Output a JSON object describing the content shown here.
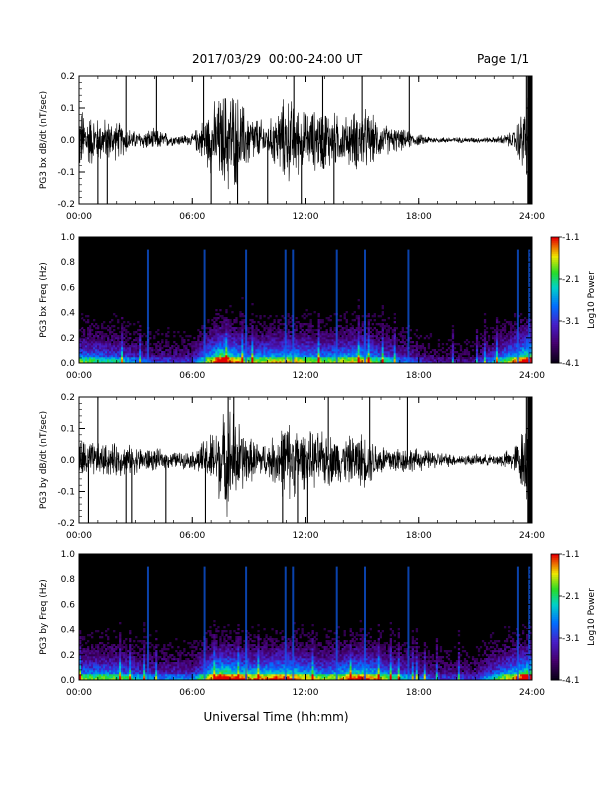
{
  "header": {
    "title": "2017/03/29  00:00-24:00 UT",
    "page": "Page 1/1"
  },
  "x_axis_title": "Universal Time (hh:mm)",
  "chart_data": [
    {
      "type": "line",
      "ylabel": "PG3 bx dB/dt (nT/sec)",
      "xlim": [
        0,
        24
      ],
      "ylim": [
        -0.2,
        0.2
      ],
      "x_ticks": [
        "00:00",
        "06:00",
        "12:00",
        "18:00",
        "24:00"
      ],
      "y_ticks": [
        "-0.2",
        "-0.1",
        "0.0",
        "0.1",
        "0.2"
      ],
      "activity_envelope": [
        {
          "hour": 0,
          "amp": 0.12
        },
        {
          "hour": 1,
          "amp": 0.08
        },
        {
          "hour": 2,
          "amp": 0.07
        },
        {
          "hour": 3,
          "amp": 0.03
        },
        {
          "hour": 4,
          "amp": 0.04
        },
        {
          "hour": 5,
          "amp": 0.02
        },
        {
          "hour": 6,
          "amp": 0.02
        },
        {
          "hour": 7,
          "amp": 0.12
        },
        {
          "hour": 8,
          "amp": 0.2
        },
        {
          "hour": 9,
          "amp": 0.1
        },
        {
          "hour": 10,
          "amp": 0.06
        },
        {
          "hour": 11,
          "amp": 0.16
        },
        {
          "hour": 12,
          "amp": 0.1
        },
        {
          "hour": 13,
          "amp": 0.12
        },
        {
          "hour": 14,
          "amp": 0.08
        },
        {
          "hour": 15,
          "amp": 0.12
        },
        {
          "hour": 16,
          "amp": 0.06
        },
        {
          "hour": 17,
          "amp": 0.04
        },
        {
          "hour": 18,
          "amp": 0.02
        },
        {
          "hour": 19,
          "amp": 0.01
        },
        {
          "hour": 20,
          "amp": 0.01
        },
        {
          "hour": 21,
          "amp": 0.01
        },
        {
          "hour": 22,
          "amp": 0.01
        },
        {
          "hour": 23,
          "amp": 0.03
        },
        {
          "hour": 24,
          "amp": 0.2
        }
      ],
      "spikes": [
        1.0,
        1.5,
        2.5,
        4.1,
        6.6,
        7.0,
        8.4,
        10.0,
        11.4,
        11.8,
        12.9,
        13.5,
        15.0,
        17.5,
        23.7,
        23.9
      ]
    },
    {
      "type": "heatmap",
      "ylabel": "PG3 bx Freq (Hz)",
      "xlim": [
        0,
        24
      ],
      "ylim": [
        0.0,
        1.0
      ],
      "x_ticks": [
        "00:00",
        "06:00",
        "12:00",
        "18:00",
        "24:00"
      ],
      "y_ticks": [
        "0.0",
        "0.2",
        "0.4",
        "0.6",
        "0.8",
        "1.0"
      ],
      "colorbar": {
        "label": "Log10 Power",
        "min": -4.1,
        "max": -1.1,
        "ticks": [
          "-1.1",
          "-2.1",
          "-3.1",
          "-4.1"
        ]
      },
      "activity_hours": [
        {
          "hour": 0,
          "level": 0.6
        },
        {
          "hour": 2,
          "level": 0.5
        },
        {
          "hour": 4,
          "level": 0.3
        },
        {
          "hour": 6,
          "level": 0.3
        },
        {
          "hour": 7.5,
          "level": 0.9
        },
        {
          "hour": 9,
          "level": 0.6
        },
        {
          "hour": 11,
          "level": 0.7
        },
        {
          "hour": 13,
          "level": 0.6
        },
        {
          "hour": 15,
          "level": 0.7
        },
        {
          "hour": 17,
          "level": 0.4
        },
        {
          "hour": 19,
          "level": 0.2
        },
        {
          "hour": 21,
          "level": 0.2
        },
        {
          "hour": 23.8,
          "level": 0.9
        }
      ]
    },
    {
      "type": "line",
      "ylabel": "PG3 by dB/dt (nT/sec)",
      "xlim": [
        0,
        24
      ],
      "ylim": [
        -0.2,
        0.2
      ],
      "x_ticks": [
        "00:00",
        "06:00",
        "12:00",
        "18:00",
        "24:00"
      ],
      "y_ticks": [
        "-0.2",
        "-0.1",
        "0.0",
        "0.1",
        "0.2"
      ],
      "activity_envelope": [
        {
          "hour": 0,
          "amp": 0.08
        },
        {
          "hour": 1,
          "amp": 0.06
        },
        {
          "hour": 2,
          "amp": 0.06
        },
        {
          "hour": 3,
          "amp": 0.05
        },
        {
          "hour": 4,
          "amp": 0.04
        },
        {
          "hour": 5,
          "amp": 0.03
        },
        {
          "hour": 6,
          "amp": 0.03
        },
        {
          "hour": 7,
          "amp": 0.1
        },
        {
          "hour": 8,
          "amp": 0.2
        },
        {
          "hour": 9,
          "amp": 0.08
        },
        {
          "hour": 10,
          "amp": 0.06
        },
        {
          "hour": 11,
          "amp": 0.15
        },
        {
          "hour": 12,
          "amp": 0.1
        },
        {
          "hour": 13,
          "amp": 0.1
        },
        {
          "hour": 14,
          "amp": 0.08
        },
        {
          "hour": 15,
          "amp": 0.1
        },
        {
          "hour": 16,
          "amp": 0.06
        },
        {
          "hour": 17,
          "amp": 0.05
        },
        {
          "hour": 18,
          "amp": 0.04
        },
        {
          "hour": 19,
          "amp": 0.03
        },
        {
          "hour": 20,
          "amp": 0.02
        },
        {
          "hour": 21,
          "amp": 0.02
        },
        {
          "hour": 22,
          "amp": 0.02
        },
        {
          "hour": 23,
          "amp": 0.04
        },
        {
          "hour": 24,
          "amp": 0.2
        }
      ],
      "spikes": [
        0.5,
        1.0,
        2.5,
        2.8,
        4.6,
        6.7,
        7.9,
        8.2,
        10.8,
        11.6,
        12.1,
        13.2,
        15.4,
        17.4,
        23.7,
        23.9
      ]
    },
    {
      "type": "heatmap",
      "ylabel": "PG3 by Freq (Hz)",
      "xlim": [
        0,
        24
      ],
      "ylim": [
        0.0,
        1.0
      ],
      "x_ticks": [
        "00:00",
        "06:00",
        "12:00",
        "18:00",
        "24:00"
      ],
      "y_ticks": [
        "0.0",
        "0.2",
        "0.4",
        "0.6",
        "0.8",
        "1.0"
      ],
      "colorbar": {
        "label": "Log10 Power",
        "min": -4.1,
        "max": -1.1,
        "ticks": [
          "-1.1",
          "-2.1",
          "-3.1",
          "-4.1"
        ]
      },
      "activity_hours": [
        {
          "hour": 0,
          "level": 0.6
        },
        {
          "hour": 2,
          "level": 0.6
        },
        {
          "hour": 4,
          "level": 0.4
        },
        {
          "hour": 6,
          "level": 0.4
        },
        {
          "hour": 7.5,
          "level": 0.9
        },
        {
          "hour": 9,
          "level": 0.7
        },
        {
          "hour": 11,
          "level": 0.8
        },
        {
          "hour": 13,
          "level": 0.6
        },
        {
          "hour": 15,
          "level": 0.8
        },
        {
          "hour": 17,
          "level": 0.5
        },
        {
          "hour": 19,
          "level": 0.3
        },
        {
          "hour": 21,
          "level": 0.3
        },
        {
          "hour": 23.8,
          "level": 0.9
        }
      ]
    }
  ]
}
